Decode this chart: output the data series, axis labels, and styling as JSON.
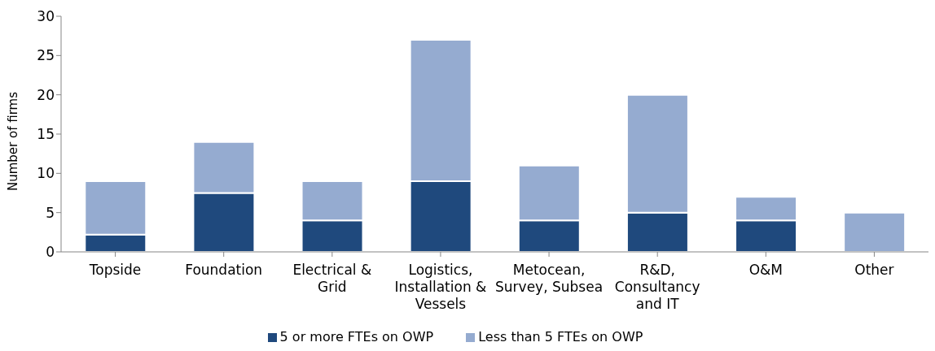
{
  "chart_data": {
    "type": "bar",
    "stacked": true,
    "ylabel": "Number of firms",
    "categories": [
      "Topside",
      "Foundation",
      "Electrical & Grid",
      "Logistics, Installation & Vessels",
      "Metocean, Survey, Subsea",
      "R&D, Consultancy and IT",
      "O&M",
      "Other"
    ],
    "series": [
      {
        "name": "5 or more FTEs on OWP",
        "color": "#1f497d",
        "values": [
          2.2,
          7.5,
          4,
          9,
          4,
          5,
          4,
          0
        ]
      },
      {
        "name": "Less than 5 FTEs on OWP",
        "color": "#95abd0",
        "values": [
          6.8,
          6.5,
          5,
          18,
          7,
          15,
          3,
          5
        ]
      }
    ],
    "ylim": [
      0,
      30
    ],
    "yticks": [
      0,
      5,
      10,
      15,
      20,
      25,
      30
    ],
    "grid": false,
    "legend": "bottom"
  }
}
